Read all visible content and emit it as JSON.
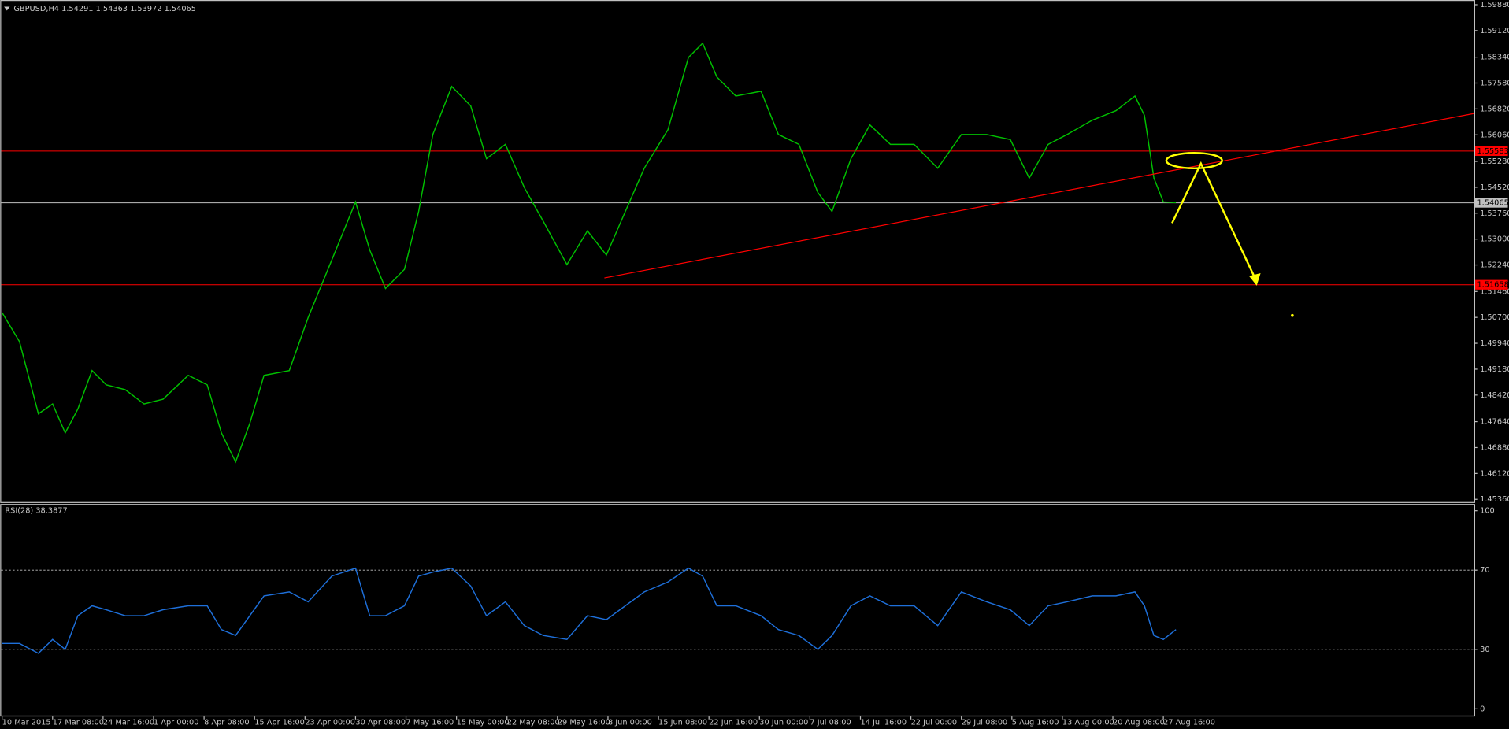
{
  "chart_data": [
    {
      "type": "line",
      "title": "GBPUSD,H4 1.54291 1.54363 1.53972 1.54065",
      "x": [
        0,
        11,
        23,
        32,
        40,
        48,
        57,
        66,
        78,
        90,
        102,
        118,
        130,
        139,
        148,
        157,
        166,
        182,
        194,
        209,
        224,
        233,
        243,
        255,
        264,
        273,
        285,
        297,
        307,
        319,
        331,
        343,
        358,
        371,
        383,
        395,
        407,
        422,
        435,
        444,
        453,
        465,
        481,
        492,
        505,
        517,
        526,
        538,
        550,
        563,
        578,
        593,
        608,
        624,
        639,
        651,
        663,
        675,
        691,
        706,
        718,
        724,
        730,
        736,
        744
      ],
      "series": [
        {
          "name": "GBPUSD,H4",
          "color": "#00c000",
          "values": [
            1.5084,
            1.4999,
            1.4787,
            1.4816,
            1.4731,
            1.4801,
            1.4914,
            1.4872,
            1.4858,
            1.4816,
            1.483,
            1.49,
            1.4872,
            1.4731,
            1.4646,
            1.4759,
            1.49,
            1.4914,
            1.507,
            1.5239,
            1.5409,
            1.5268,
            1.5155,
            1.5211,
            1.5381,
            1.5607,
            1.5748,
            1.5691,
            1.5536,
            1.5578,
            1.5451,
            1.5352,
            1.5225,
            1.5324,
            1.5253,
            1.5381,
            1.5508,
            1.5621,
            1.5833,
            1.5875,
            1.5776,
            1.572,
            1.5734,
            1.5607,
            1.5578,
            1.5437,
            1.5381,
            1.5536,
            1.5635,
            1.5578,
            1.5578,
            1.5508,
            1.5607,
            1.5607,
            1.5592,
            1.5479,
            1.5578,
            1.5607,
            1.5649,
            1.5677,
            1.572,
            1.5663,
            1.5479,
            1.5409,
            1.5407
          ]
        }
      ],
      "xlim": [
        0,
        933
      ],
      "xticks": [
        {
          "value": 0,
          "label": "10 Mar 2015"
        },
        {
          "value": 32,
          "label": "17 Mar 08:00"
        },
        {
          "value": 64,
          "label": "24 Mar 16:00"
        },
        {
          "value": 96,
          "label": "1 Apr 00:00"
        },
        {
          "value": 128,
          "label": "8 Apr 08:00"
        },
        {
          "value": 160,
          "label": "15 Apr 16:00"
        },
        {
          "value": 192,
          "label": "23 Apr 00:00"
        },
        {
          "value": 224,
          "label": "30 Apr 08:00"
        },
        {
          "value": 256,
          "label": "7 May 16:00"
        },
        {
          "value": 288,
          "label": "15 May 00:00"
        },
        {
          "value": 320,
          "label": "22 May 08:00"
        },
        {
          "value": 352,
          "label": "29 May 16:00"
        },
        {
          "value": 384,
          "label": "8 Jun 00:00"
        },
        {
          "value": 416,
          "label": "15 Jun 08:00"
        },
        {
          "value": 448,
          "label": "22 Jun 16:00"
        },
        {
          "value": 480,
          "label": "30 Jun 00:00"
        },
        {
          "value": 512,
          "label": "7 Jul 08:00"
        },
        {
          "value": 544,
          "label": "14 Jul 16:00"
        },
        {
          "value": 576,
          "label": "22 Jul 00:00"
        },
        {
          "value": 608,
          "label": "29 Jul 08:00"
        },
        {
          "value": 640,
          "label": "5 Aug 16:00"
        },
        {
          "value": 672,
          "label": "13 Aug 00:00"
        },
        {
          "value": 704,
          "label": "20 Aug 08:00"
        },
        {
          "value": 736,
          "label": "27 Aug 16:00"
        }
      ],
      "ylim": [
        1.4528,
        1.5999
      ],
      "yticks": [
        {
          "value": 1.5988,
          "label": "1.59880"
        },
        {
          "value": 1.5912,
          "label": "1.59120"
        },
        {
          "value": 1.5834,
          "label": "1.58340"
        },
        {
          "value": 1.5758,
          "label": "1.57580"
        },
        {
          "value": 1.5682,
          "label": "1.56820"
        },
        {
          "value": 1.5606,
          "label": "1.56060"
        },
        {
          "value": 1.5528,
          "label": "1.55280"
        },
        {
          "value": 1.5452,
          "label": "1.54520"
        },
        {
          "value": 1.5376,
          "label": "1.53760"
        },
        {
          "value": 1.53,
          "label": "1.53000"
        },
        {
          "value": 1.5224,
          "label": "1.52240"
        },
        {
          "value": 1.5146,
          "label": "1.51460"
        },
        {
          "value": 1.507,
          "label": "1.50700"
        },
        {
          "value": 1.4994,
          "label": "1.49940"
        },
        {
          "value": 1.4918,
          "label": "1.49180"
        },
        {
          "value": 1.4842,
          "label": "1.48420"
        },
        {
          "value": 1.4764,
          "label": "1.47640"
        },
        {
          "value": 1.4688,
          "label": "1.46880"
        },
        {
          "value": 1.4612,
          "label": "1.46120"
        },
        {
          "value": 1.4536,
          "label": "1.45360"
        }
      ],
      "hlines": [
        {
          "value": 1.55583,
          "label": "1.55583",
          "color": "#ff0000"
        },
        {
          "value": 1.51658,
          "label": "1.51658",
          "color": "#ff0000"
        },
        {
          "value": 1.54065,
          "label": "1.54065",
          "color": "#c0c0c0"
        }
      ]
    },
    {
      "type": "line",
      "title": "RSI(28) 38.3877",
      "x": [
        0,
        11,
        23,
        32,
        40,
        48,
        57,
        66,
        78,
        90,
        102,
        118,
        130,
        139,
        148,
        157,
        166,
        182,
        194,
        209,
        224,
        233,
        243,
        255,
        264,
        273,
        285,
        297,
        307,
        319,
        331,
        343,
        358,
        371,
        383,
        395,
        407,
        422,
        435,
        444,
        453,
        465,
        481,
        492,
        505,
        517,
        526,
        538,
        550,
        563,
        578,
        593,
        608,
        624,
        639,
        651,
        663,
        675,
        691,
        706,
        718,
        724,
        730,
        736,
        744
      ],
      "series": [
        {
          "name": "RSI(28)",
          "color": "#1e6fd9",
          "values": [
            33,
            33,
            28,
            35,
            30,
            47,
            52,
            50,
            47,
            47,
            50,
            52,
            52,
            40,
            37,
            47,
            57,
            59,
            54,
            67,
            71,
            47,
            47,
            52,
            67,
            69,
            71,
            62,
            47,
            54,
            42,
            37,
            35,
            47,
            45,
            52,
            59,
            64,
            71,
            67,
            52,
            52,
            47,
            40,
            37,
            30,
            37,
            52,
            57,
            52,
            52,
            42,
            59,
            54,
            50,
            42,
            52,
            54,
            57,
            57,
            59,
            52,
            37,
            35,
            40
          ]
        }
      ],
      "xlim": [
        0,
        933
      ],
      "ylim": [
        0,
        100
      ],
      "yticks": [
        0,
        30,
        70,
        100
      ]
    }
  ]
}
